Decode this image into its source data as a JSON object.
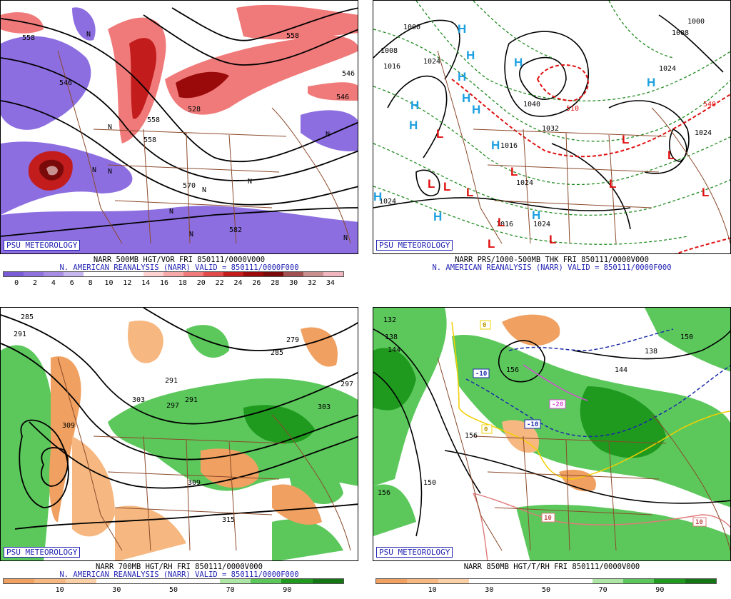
{
  "panels": [
    {
      "id": "tl",
      "badge": "PSU METEOROLOGY",
      "caption1": "NARR 500MB HGT/VOR FRI 850111/0000V000",
      "caption2": "N. AMERICAN REANALYSIS (NARR) VALID = 850111/0000F000",
      "colorbar": [
        "#7a5bd6",
        "#8f72dc",
        "#a78de4",
        "#c5b6ee",
        "#ffffff",
        "#ffffff",
        "#ffffff",
        "#ffd2d2",
        "#f7a8a8",
        "#f07a7a",
        "#e14a4a",
        "#c21c1c",
        "#9a0a0a",
        "#7a0a0a",
        "#a05050",
        "#c99090",
        "#f0b6c0"
      ],
      "ticks": [
        "0",
        "2",
        "4",
        "6",
        "8",
        "10",
        "12",
        "14",
        "16",
        "18",
        "20",
        "22",
        "24",
        "26",
        "28",
        "30",
        "32",
        "34"
      ],
      "labels": [
        "558",
        "546",
        "558",
        "528",
        "558",
        "570",
        "582",
        "546",
        "558",
        "546"
      ],
      "symbols": [
        "N",
        "N",
        "N",
        "N",
        "N",
        "N",
        "N",
        "N",
        "N",
        "N"
      ]
    },
    {
      "id": "tr",
      "badge": "PSU METEOROLOGY",
      "caption1": "NARR PRS/1000-500MB THK FRI 850111/0000V000",
      "caption2": "N. AMERICAN REANALYSIS (NARR) VALID = 850111/0000F000",
      "labels": [
        "1000",
        "1008",
        "1016",
        "1024",
        "1040",
        "1032",
        "1024",
        "1024",
        "1016",
        "1024",
        "1016",
        "1000",
        "1008",
        "1024",
        "1024",
        "540",
        "510"
      ],
      "highs": [
        "H",
        "H",
        "H",
        "H",
        "H",
        "H",
        "H",
        "H",
        "H",
        "H",
        "H",
        "H",
        "H"
      ],
      "lows": [
        "L",
        "L",
        "L",
        "L",
        "L",
        "L",
        "L",
        "L",
        "L",
        "L",
        "L",
        "L"
      ]
    },
    {
      "id": "bl",
      "badge": "PSU METEOROLOGY",
      "caption1": "NARR 700MB HGT/RH FRI 850111/0000V000",
      "caption2": "N. AMERICAN REANALYSIS (NARR) VALID = 850111/0000F000",
      "colorbar": [
        "#f0a060",
        "#f6b880",
        "#fbd0a6",
        "#ffffff",
        "#ffffff",
        "#ffffff",
        "#ffffff",
        "#aee6a6",
        "#5cc85c",
        "#1f9a1f",
        "#137513"
      ],
      "ticks": [
        "10",
        "30",
        "50",
        "70",
        "90"
      ],
      "labels": [
        "285",
        "291",
        "297",
        "303",
        "309",
        "291",
        "297",
        "303",
        "309",
        "315",
        "285",
        "279",
        "291"
      ]
    },
    {
      "id": "br",
      "badge": "PSU METEOROLOGY",
      "caption1": "NARR 850MB HGT/T/RH FRI 850111/0000V000",
      "caption2": "",
      "colorbar": [
        "#f0a060",
        "#f6b880",
        "#fbd0a6",
        "#ffffff",
        "#ffffff",
        "#ffffff",
        "#ffffff",
        "#aee6a6",
        "#5cc85c",
        "#1f9a1f",
        "#137513"
      ],
      "ticks": [
        "10",
        "30",
        "50",
        "70",
        "90"
      ],
      "labels": [
        "132",
        "138",
        "144",
        "150",
        "156",
        "156",
        "144",
        "138",
        "150",
        "156"
      ],
      "temps": [
        "-10",
        "-10",
        "-20",
        "0",
        "0",
        "10",
        "10"
      ]
    }
  ]
}
